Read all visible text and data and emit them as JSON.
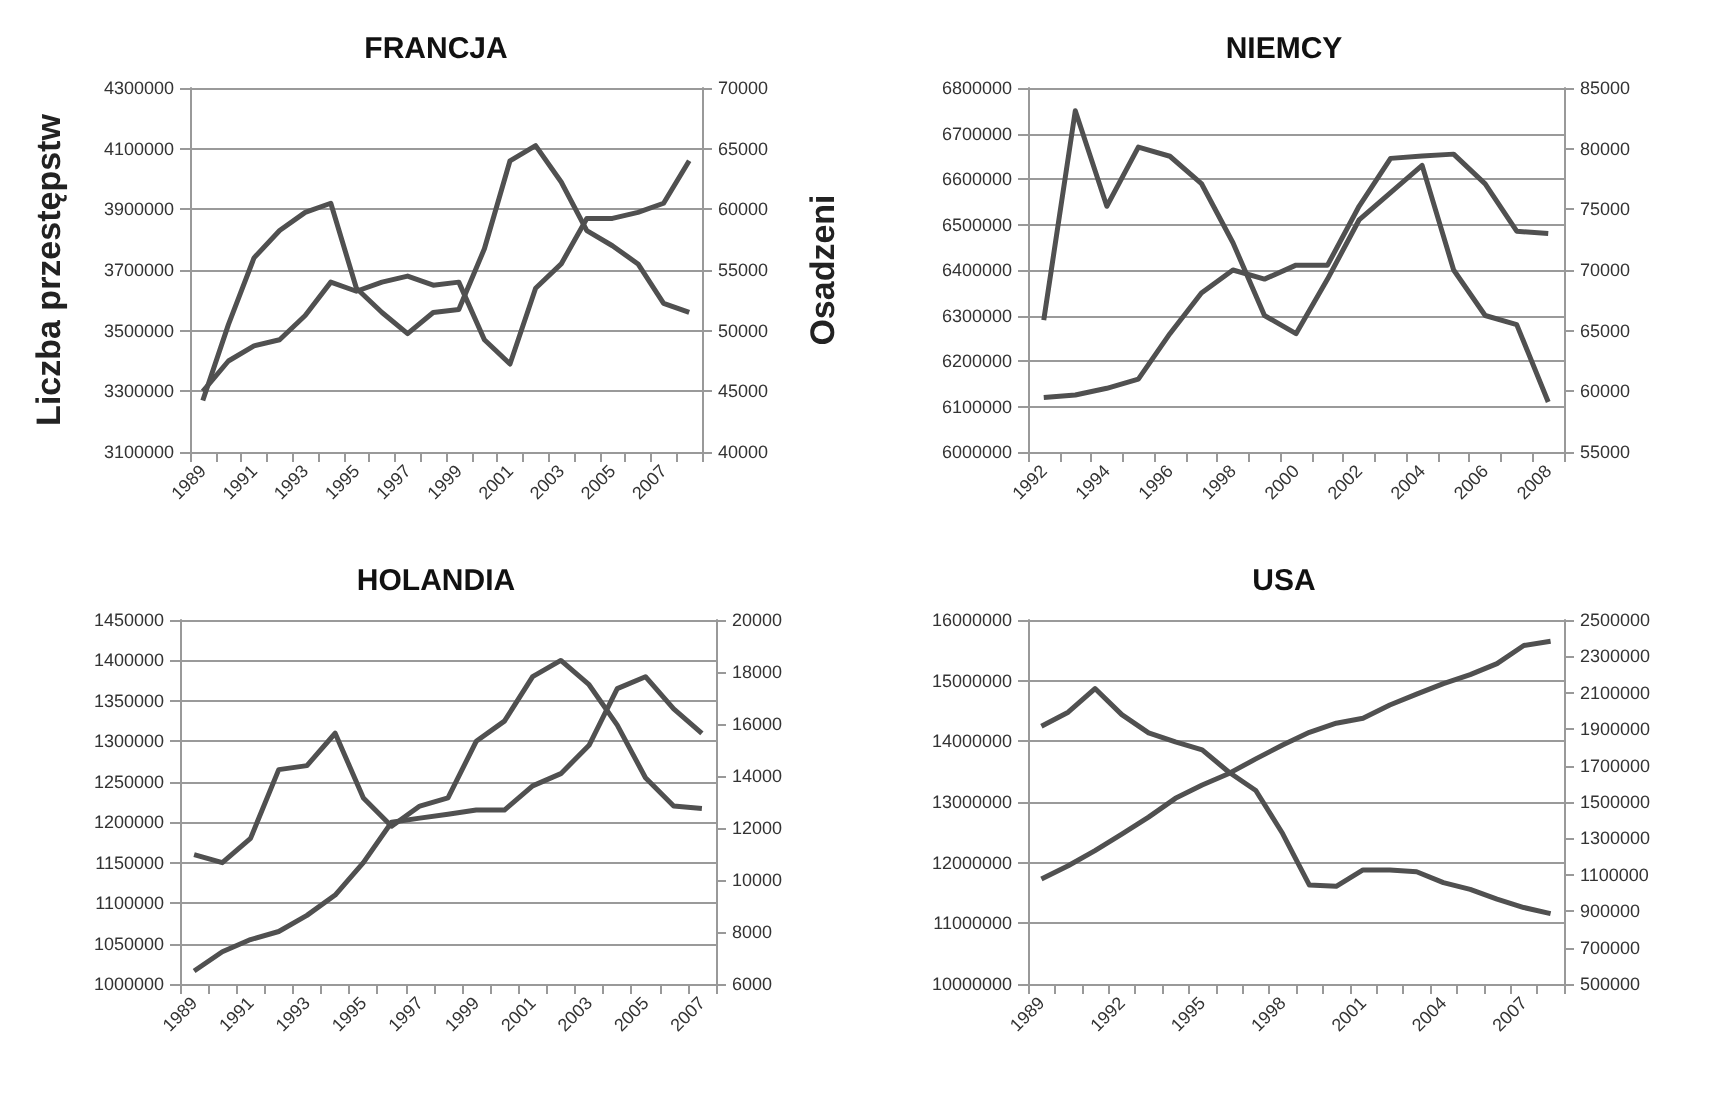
{
  "chart_data": [
    {
      "type": "line",
      "title": "FRANCJA",
      "ylabel": "Liczba przestępstw",
      "y2label": "Osadzeni",
      "grid": "y",
      "categories": [
        "1989",
        null,
        "1991",
        null,
        "1993",
        null,
        "1995",
        null,
        "1997",
        null,
        "1999",
        null,
        "2001",
        null,
        "2003",
        null,
        "2005",
        null,
        "2007",
        null
      ],
      "ylim": [
        3100000,
        4300000
      ],
      "yticks": [
        3100000,
        3300000,
        3500000,
        3700000,
        3900000,
        4100000,
        4300000
      ],
      "y2lim": [
        40000,
        70000
      ],
      "y2ticks": [
        40000,
        45000,
        50000,
        55000,
        60000,
        65000,
        70000
      ],
      "series": [
        {
          "color": "#505050",
          "values": [
            3270000,
            3520000,
            3740000,
            3830000,
            3890000,
            3920000,
            3640000,
            3560000,
            3490000,
            3560000,
            3570000,
            3770000,
            4060000,
            4110000,
            3990000,
            3830000,
            3780000,
            3720000,
            3590000,
            3560000
          ]
        },
        {
          "color": "#505050",
          "axis": "y2",
          "values": [
            45000,
            47500,
            48750,
            49250,
            51250,
            54000,
            53250,
            54000,
            54500,
            53750,
            54000,
            49250,
            47250,
            53500,
            55500,
            59250,
            59250,
            59750,
            60500,
            64000
          ]
        }
      ]
    },
    {
      "type": "line",
      "title": "NIEMCY",
      "grid": "y",
      "categories": [
        "1992",
        null,
        "1994",
        null,
        "1996",
        null,
        "1998",
        null,
        "2000",
        null,
        "2002",
        null,
        "2004",
        null,
        "2006",
        null,
        "2008"
      ],
      "ylim": [
        6000000,
        6800000
      ],
      "yticks": [
        6000000,
        6100000,
        6200000,
        6300000,
        6400000,
        6500000,
        6600000,
        6700000,
        6800000
      ],
      "y2lim": [
        55000,
        85000
      ],
      "y2ticks": [
        55000,
        60000,
        65000,
        70000,
        75000,
        80000,
        85000
      ],
      "series": [
        {
          "color": "#505050",
          "values": [
            6290000,
            6750000,
            6540000,
            6670000,
            6650000,
            6590000,
            6460000,
            6300000,
            6260000,
            6380000,
            6510000,
            6570000,
            6630000,
            6400000,
            6300000,
            6280000,
            6110000
          ]
        },
        {
          "color": "#505050",
          "axis": "y2",
          "values": [
            59500,
            59700,
            60250,
            61000,
            64750,
            68100,
            70000,
            69250,
            70400,
            70400,
            75250,
            79200,
            79400,
            79550,
            77100,
            73200,
            73000
          ]
        }
      ]
    },
    {
      "type": "line",
      "title": "HOLANDIA",
      "grid": "y",
      "categories": [
        "1989",
        null,
        "1991",
        null,
        "1993",
        null,
        "1995",
        null,
        "1997",
        null,
        "1999",
        null,
        "2001",
        null,
        "2003",
        null,
        "2005",
        null,
        "2007"
      ],
      "ylim": [
        1000000,
        1450000
      ],
      "yticks": [
        1000000,
        1050000,
        1100000,
        1150000,
        1200000,
        1250000,
        1300000,
        1350000,
        1400000,
        1450000
      ],
      "y2lim": [
        6000,
        20000
      ],
      "y2ticks": [
        6000,
        8000,
        10000,
        12000,
        14000,
        16000,
        18000,
        20000
      ],
      "series": [
        {
          "color": "#505050",
          "values": [
            1160000,
            1150000,
            1180000,
            1265000,
            1270000,
            1310000,
            1230000,
            1195000,
            1220000,
            1230000,
            1300000,
            1325000,
            1380000,
            1400000,
            1370000,
            1320000,
            1255000,
            1220000,
            1217000
          ]
        },
        {
          "color": "#505050",
          "axis": "y2",
          "values": [
            6500,
            7240,
            7710,
            8020,
            8640,
            9420,
            10670,
            12220,
            12380,
            12530,
            12690,
            12690,
            13620,
            14090,
            15180,
            17360,
            17820,
            16580,
            15640
          ]
        }
      ]
    },
    {
      "type": "line",
      "title": "USA",
      "grid": "y",
      "categories": [
        "1989",
        null,
        null,
        "1992",
        null,
        null,
        "1995",
        null,
        null,
        "1998",
        null,
        null,
        "2001",
        null,
        null,
        "2004",
        null,
        null,
        "2007",
        null
      ],
      "ylim": [
        10000000,
        16000000
      ],
      "yticks": [
        10000000,
        11000000,
        12000000,
        13000000,
        14000000,
        15000000,
        16000000
      ],
      "y2lim": [
        500000,
        2500000
      ],
      "y2ticks": [
        500000,
        700000,
        900000,
        1100000,
        1300000,
        1500000,
        1700000,
        1900000,
        2100000,
        2300000,
        2500000
      ],
      "series": [
        {
          "color": "#505050",
          "values": [
            14250000,
            14480000,
            14870000,
            14440000,
            14140000,
            13990000,
            13860000,
            13490000,
            13190000,
            12480000,
            11630000,
            11610000,
            11880000,
            11880000,
            11850000,
            11670000,
            11560000,
            11400000,
            11260000,
            11160000
          ]
        },
        {
          "color": "#505050",
          "axis": "y2",
          "values": [
            1077000,
            1150000,
            1233000,
            1323000,
            1417000,
            1520000,
            1593000,
            1657000,
            1737000,
            1813000,
            1883000,
            1933000,
            1960000,
            2033000,
            2093000,
            2150000,
            2200000,
            2260000,
            2360000,
            2383000
          ]
        }
      ]
    }
  ]
}
